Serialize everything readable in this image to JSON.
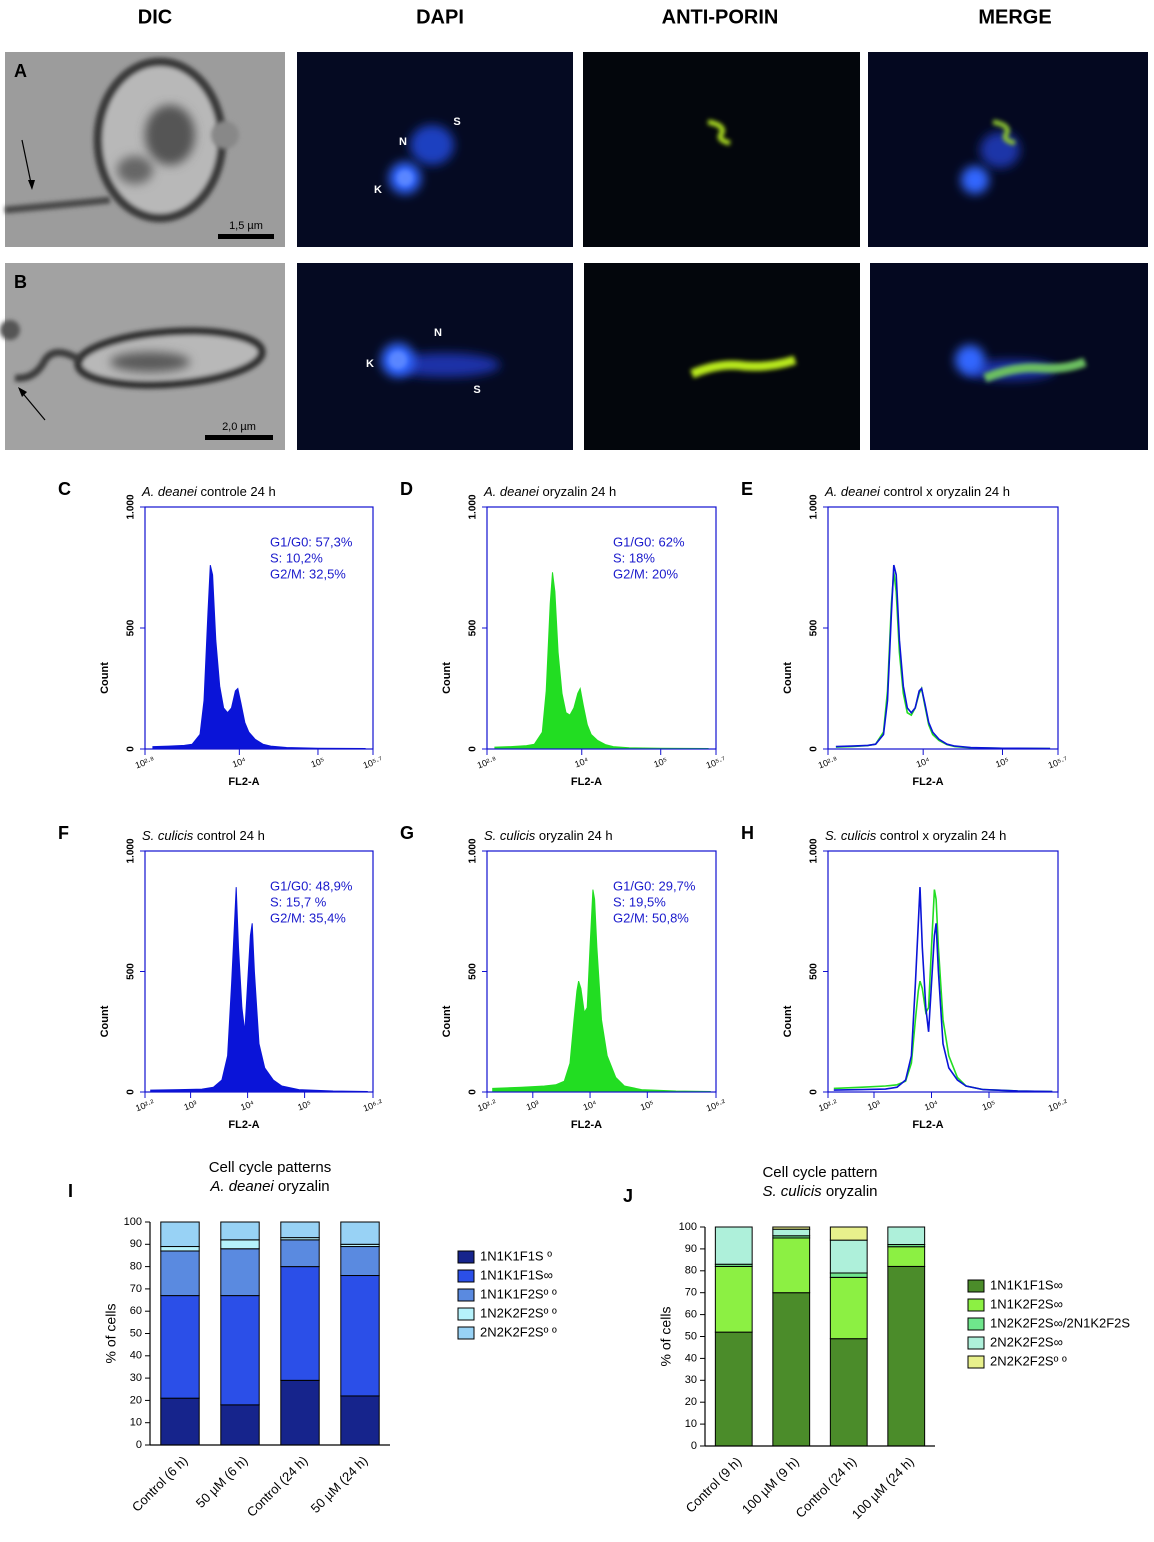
{
  "columns": [
    "DIC",
    "DAPI",
    "ANTI-PORIN",
    "MERGE"
  ],
  "image_rows": [
    {
      "panel": "A",
      "labels": [
        "N",
        "S",
        "K"
      ],
      "scale_bar": "1,5 µm"
    },
    {
      "panel": "B",
      "labels": [
        "K",
        "N",
        "S"
      ],
      "scale_bar": "2,0 µm"
    }
  ],
  "chart_data": [
    {
      "type": "histogram",
      "panel": "C",
      "title": [
        "A. deanei",
        " controle 24 h"
      ],
      "xlabel": "FL2-A",
      "ylabel": "Count",
      "annotations": [
        "G1/G0: 57,3%",
        "S: 10,2%",
        "G2/M: 32,5%"
      ],
      "fill": true,
      "xlim": [
        2.8,
        5.7
      ],
      "xticks": [
        {
          "value": 2.8,
          "label": "10²·⁸"
        },
        {
          "value": 4,
          "label": "10⁴"
        },
        {
          "value": 5,
          "label": "10⁵"
        },
        {
          "value": 5.7,
          "label": "10⁵·⁷"
        }
      ],
      "ylim": [
        0,
        1000
      ],
      "yticks": [
        0,
        500,
        {
          "value": 1000,
          "label": "1.000"
        }
      ],
      "x": [
        2.9,
        3.1,
        3.3,
        3.4,
        3.5,
        3.55,
        3.6,
        3.63,
        3.66,
        3.7,
        3.75,
        3.8,
        3.85,
        3.9,
        3.95,
        3.98,
        4.02,
        4.07,
        4.12,
        4.2,
        4.3,
        4.4,
        4.6,
        5.0,
        5.6
      ],
      "series": [
        {
          "color": "#0a14d8",
          "values": [
            10,
            12,
            15,
            20,
            60,
            200,
            560,
            760,
            720,
            450,
            260,
            170,
            150,
            170,
            240,
            250,
            190,
            110,
            70,
            40,
            20,
            12,
            6,
            3,
            2
          ]
        }
      ]
    },
    {
      "type": "histogram",
      "panel": "D",
      "title": [
        "A. deanei",
        " oryzalin 24 h"
      ],
      "xlabel": "FL2-A",
      "ylabel": "Count",
      "annotations": [
        "G1/G0: 62%",
        "S: 18%",
        "G2/M: 20%"
      ],
      "fill": true,
      "xlim": [
        2.8,
        5.7
      ],
      "xticks": [
        {
          "value": 2.8,
          "label": "10²·⁸"
        },
        {
          "value": 4,
          "label": "10⁴"
        },
        {
          "value": 5,
          "label": "10⁵"
        },
        {
          "value": 5.7,
          "label": "10⁵·⁷"
        }
      ],
      "ylim": [
        0,
        1000
      ],
      "yticks": [
        0,
        500,
        {
          "value": 1000,
          "label": "1.000"
        }
      ],
      "x": [
        2.9,
        3.1,
        3.3,
        3.4,
        3.5,
        3.55,
        3.6,
        3.63,
        3.66,
        3.7,
        3.75,
        3.8,
        3.85,
        3.9,
        3.95,
        3.98,
        4.02,
        4.07,
        4.12,
        4.2,
        4.3,
        4.4,
        4.6,
        5.0,
        5.6
      ],
      "series": [
        {
          "color": "#22dd22",
          "values": [
            8,
            10,
            14,
            20,
            70,
            240,
            600,
            730,
            650,
            400,
            230,
            150,
            140,
            170,
            230,
            250,
            180,
            100,
            60,
            35,
            18,
            10,
            5,
            3,
            2
          ]
        }
      ]
    },
    {
      "type": "histogram",
      "panel": "E",
      "title": [
        "A. deanei",
        " control x oryzalin 24 h"
      ],
      "xlabel": "FL2-A",
      "ylabel": "Count",
      "fill": false,
      "xlim": [
        2.8,
        5.7
      ],
      "xticks": [
        {
          "value": 2.8,
          "label": "10²·⁸"
        },
        {
          "value": 4,
          "label": "10⁴"
        },
        {
          "value": 5,
          "label": "10⁵"
        },
        {
          "value": 5.7,
          "label": "10⁵·⁷"
        }
      ],
      "ylim": [
        0,
        1000
      ],
      "yticks": [
        0,
        500,
        {
          "value": 1000,
          "label": "1.000"
        }
      ],
      "x": [
        2.9,
        3.1,
        3.3,
        3.4,
        3.5,
        3.55,
        3.6,
        3.63,
        3.66,
        3.7,
        3.75,
        3.8,
        3.85,
        3.9,
        3.95,
        3.98,
        4.02,
        4.07,
        4.12,
        4.2,
        4.3,
        4.4,
        4.6,
        5.0,
        5.6
      ],
      "series": [
        {
          "color": "#22dd22",
          "values": [
            8,
            10,
            14,
            20,
            70,
            240,
            600,
            730,
            650,
            400,
            230,
            150,
            140,
            170,
            230,
            250,
            180,
            100,
            60,
            35,
            18,
            10,
            5,
            3,
            2
          ]
        },
        {
          "color": "#0a14d8",
          "values": [
            10,
            12,
            15,
            20,
            60,
            200,
            560,
            760,
            720,
            450,
            260,
            170,
            150,
            170,
            240,
            250,
            190,
            110,
            70,
            40,
            20,
            12,
            6,
            3,
            2
          ]
        }
      ]
    },
    {
      "type": "histogram",
      "panel": "F",
      "title": [
        "S. culicis",
        " control 24 h"
      ],
      "xlabel": "FL2-A",
      "ylabel": "Count",
      "annotations": [
        "G1/G0: 48,9%",
        "S: 15,7 %",
        "G2/M: 35,4%"
      ],
      "fill": true,
      "xlim": [
        2.2,
        6.2
      ],
      "xticks": [
        {
          "value": 2.2,
          "label": "10²·²"
        },
        {
          "value": 3,
          "label": "10³"
        },
        {
          "value": 4,
          "label": "10⁴"
        },
        {
          "value": 5,
          "label": "10⁵"
        },
        {
          "value": 6.2,
          "label": "10⁶·²"
        }
      ],
      "ylim": [
        0,
        1000
      ],
      "yticks": [
        0,
        500,
        {
          "value": 1000,
          "label": "1.000"
        }
      ],
      "x": [
        2.3,
        2.8,
        3.2,
        3.4,
        3.55,
        3.65,
        3.72,
        3.77,
        3.8,
        3.84,
        3.9,
        3.95,
        4.0,
        4.05,
        4.08,
        4.12,
        4.2,
        4.3,
        4.45,
        4.6,
        4.9,
        5.5,
        6.1
      ],
      "series": [
        {
          "color": "#0a14d8",
          "values": [
            8,
            10,
            12,
            20,
            50,
            150,
            450,
            700,
            850,
            600,
            350,
            250,
            450,
            650,
            700,
            500,
            200,
            100,
            50,
            25,
            10,
            4,
            2
          ]
        }
      ]
    },
    {
      "type": "histogram",
      "panel": "G",
      "title": [
        "S. culicis",
        " oryzalin 24 h"
      ],
      "xlabel": "FL2-A",
      "ylabel": "Count",
      "annotations": [
        "G1/G0: 29,7%",
        "S: 19,5%",
        "G2/M: 50,8%"
      ],
      "fill": true,
      "xlim": [
        2.2,
        6.2
      ],
      "xticks": [
        {
          "value": 2.2,
          "label": "10²·²"
        },
        {
          "value": 3,
          "label": "10³"
        },
        {
          "value": 4,
          "label": "10⁴"
        },
        {
          "value": 5,
          "label": "10⁵"
        },
        {
          "value": 6.2,
          "label": "10⁶·²"
        }
      ],
      "ylim": [
        0,
        1000
      ],
      "yticks": [
        0,
        500,
        {
          "value": 1000,
          "label": "1.000"
        }
      ],
      "x": [
        2.3,
        2.8,
        3.2,
        3.4,
        3.55,
        3.65,
        3.72,
        3.77,
        3.8,
        3.84,
        3.9,
        3.95,
        4.0,
        4.05,
        4.08,
        4.12,
        4.2,
        4.3,
        4.45,
        4.6,
        4.9,
        5.5,
        6.1
      ],
      "series": [
        {
          "color": "#22dd22",
          "values": [
            15,
            20,
            25,
            30,
            45,
            120,
            300,
            420,
            460,
            430,
            330,
            350,
            600,
            840,
            800,
            600,
            300,
            150,
            60,
            25,
            10,
            4,
            2
          ]
        }
      ]
    },
    {
      "type": "histogram",
      "panel": "H",
      "title": [
        "S. culicis",
        " control x oryzalin 24 h"
      ],
      "xlabel": "FL2-A",
      "ylabel": "Count",
      "fill": false,
      "xlim": [
        2.2,
        6.2
      ],
      "xticks": [
        {
          "value": 2.2,
          "label": "10²·²"
        },
        {
          "value": 3,
          "label": "10³"
        },
        {
          "value": 4,
          "label": "10⁴"
        },
        {
          "value": 5,
          "label": "10⁵"
        },
        {
          "value": 6.2,
          "label": "10⁶·²"
        }
      ],
      "ylim": [
        0,
        1000
      ],
      "yticks": [
        0,
        500,
        {
          "value": 1000,
          "label": "1.000"
        }
      ],
      "x": [
        2.3,
        2.8,
        3.2,
        3.4,
        3.55,
        3.65,
        3.72,
        3.77,
        3.8,
        3.84,
        3.9,
        3.95,
        4.0,
        4.05,
        4.08,
        4.12,
        4.2,
        4.3,
        4.45,
        4.6,
        4.9,
        5.5,
        6.1
      ],
      "series": [
        {
          "color": "#22dd22",
          "values": [
            15,
            20,
            25,
            30,
            45,
            120,
            300,
            420,
            460,
            430,
            330,
            350,
            600,
            840,
            800,
            600,
            300,
            150,
            60,
            25,
            10,
            4,
            2
          ]
        },
        {
          "color": "#0a14d8",
          "values": [
            8,
            10,
            12,
            20,
            50,
            150,
            450,
            700,
            850,
            600,
            350,
            250,
            450,
            650,
            700,
            500,
            200,
            100,
            50,
            25,
            10,
            4,
            2
          ]
        }
      ]
    },
    {
      "type": "stacked_bar",
      "panel": "I",
      "title": "Cell cycle patterns",
      "subtitle": [
        "A. deanei",
        " oryzalin"
      ],
      "ylabel": "% of cells",
      "categories": [
        "Control (6 h)",
        "50 µM (6 h)",
        "Control (24 h)",
        "50 µM (24 h)"
      ],
      "ylim": [
        0,
        100
      ],
      "yticks": [
        0,
        10,
        20,
        30,
        40,
        50,
        60,
        70,
        80,
        90,
        100
      ],
      "legend": "right",
      "series": [
        {
          "name": "1N1K1F1S º",
          "color": "#16248c",
          "values": [
            21,
            18,
            29,
            22
          ]
        },
        {
          "name": "1N1K1F1S∞",
          "color": "#2b4fe8",
          "values": [
            46,
            49,
            51,
            54
          ]
        },
        {
          "name": "1N1K1F2Sº º",
          "color": "#5a8ae0",
          "values": [
            20,
            21,
            12,
            13
          ]
        },
        {
          "name": "1N2K2F2Sº º",
          "color": "#b6f2fb",
          "values": [
            2,
            4,
            1,
            1
          ]
        },
        {
          "name": "2N2K2F2Sº º",
          "color": "#98d2f5",
          "values": [
            11,
            8,
            7,
            10
          ]
        }
      ]
    },
    {
      "type": "stacked_bar",
      "panel": "J",
      "title": "Cell cycle pattern",
      "subtitle": [
        "S. culicis",
        " oryzalin"
      ],
      "ylabel": "% of cells",
      "categories": [
        "Control (9 h)",
        "100 µM (9 h)",
        "Control (24 h)",
        "100 µM (24 h)"
      ],
      "ylim": [
        0,
        100
      ],
      "yticks": [
        0,
        10,
        20,
        30,
        40,
        50,
        60,
        70,
        80,
        90,
        100
      ],
      "legend": "right",
      "series": [
        {
          "name": "1N1K1F1S∞",
          "color": "#4b8c2a",
          "values": [
            52,
            70,
            49,
            82
          ]
        },
        {
          "name": "1N1K2F2S∞",
          "color": "#8cf043",
          "values": [
            30,
            25,
            28,
            9
          ]
        },
        {
          "name": "1N2K2F2S∞/2N1K2F2S",
          "color": "#6fe68c",
          "values": [
            1,
            1,
            2,
            1
          ]
        },
        {
          "name": "2N2K2F2S∞",
          "color": "#aef0da",
          "values": [
            17,
            3,
            15,
            8
          ]
        },
        {
          "name": "2N2K2F2Sº º",
          "color": "#e8f08c",
          "values": [
            0,
            1,
            6,
            0
          ]
        }
      ]
    }
  ]
}
